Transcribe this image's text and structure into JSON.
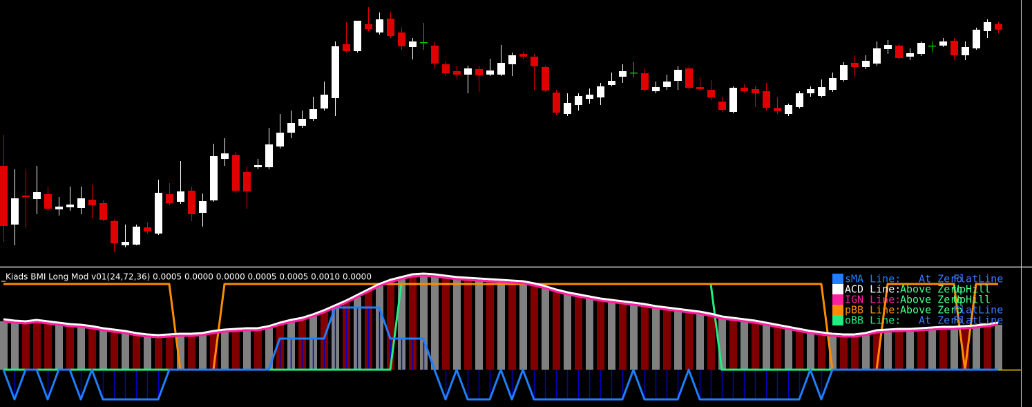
{
  "chart_data": [
    {
      "type": "candlestick",
      "up_color": "#ffffff",
      "down_color": "#e00000",
      "doji_color": "#00c000",
      "ylim": [
        5,
        390
      ],
      "open": [
        150,
        65,
        107,
        102,
        109,
        87,
        90,
        89,
        101,
        96,
        70,
        35,
        36,
        61,
        52,
        109,
        98,
        114,
        82,
        100,
        160,
        166,
        141,
        148,
        148,
        178,
        198,
        208,
        218,
        233,
        248,
        326,
        316,
        355,
        343,
        363,
        343,
        322,
        329,
        324,
        297,
        287,
        282,
        290,
        282,
        282,
        297,
        312,
        308,
        293,
        256,
        225,
        238,
        247,
        249,
        267,
        279,
        285,
        284,
        258,
        264,
        273,
        291,
        264,
        260,
        243,
        228,
        263,
        261,
        258,
        234,
        225,
        235,
        255,
        251,
        260,
        274,
        299,
        293,
        298,
        319,
        324,
        308,
        312,
        324,
        324,
        331,
        310,
        320,
        345,
        355
      ],
      "high": [
        195,
        145,
        145,
        150,
        120,
        105,
        120,
        120,
        122,
        100,
        72,
        65,
        65,
        68,
        130,
        125,
        157,
        120,
        110,
        182,
        190,
        170,
        150,
        160,
        205,
        225,
        230,
        230,
        250,
        272,
        330,
        358,
        360,
        380,
        372,
        373,
        350,
        335,
        357,
        330,
        302,
        295,
        295,
        295,
        305,
        325,
        314,
        315,
        312,
        295,
        260,
        255,
        255,
        262,
        270,
        285,
        297,
        300,
        290,
        272,
        282,
        294,
        295,
        278,
        274,
        250,
        265,
        268,
        265,
        270,
        250,
        240,
        258,
        265,
        275,
        285,
        300,
        310,
        310,
        330,
        332,
        327,
        320,
        330,
        330,
        335,
        335,
        330,
        350,
        362,
        358
      ],
      "low": [
        40,
        35,
        60,
        80,
        85,
        78,
        85,
        80,
        75,
        70,
        25,
        32,
        35,
        52,
        50,
        93,
        95,
        70,
        62,
        98,
        150,
        110,
        88,
        145,
        145,
        175,
        190,
        205,
        215,
        230,
        222,
        314,
        314,
        345,
        340,
        335,
        318,
        304,
        318,
        290,
        280,
        275,
        255,
        257,
        280,
        280,
        280,
        305,
        260,
        257,
        224,
        222,
        230,
        240,
        238,
        265,
        270,
        278,
        258,
        255,
        260,
        260,
        260,
        258,
        245,
        228,
        226,
        256,
        235,
        230,
        225,
        222,
        233,
        250,
        249,
        257,
        272,
        278,
        290,
        295,
        312,
        304,
        303,
        309,
        314,
        322,
        303,
        303,
        318,
        335,
        342
      ],
      "close": [
        63,
        103,
        105,
        112,
        88,
        91,
        94,
        103,
        93,
        72,
        38,
        40,
        62,
        55,
        111,
        96,
        113,
        80,
        99,
        164,
        168,
        114,
        113,
        151,
        181,
        198,
        212,
        218,
        232,
        253,
        323,
        316,
        360,
        348,
        362,
        338,
        323,
        330,
        329,
        298,
        284,
        282,
        291,
        281,
        288,
        299,
        310,
        308,
        294,
        259,
        227,
        241,
        251,
        253,
        265,
        273,
        287,
        285,
        260,
        264,
        272,
        289,
        263,
        261,
        249,
        231,
        263,
        258,
        255,
        234,
        229,
        238,
        255,
        261,
        264,
        277,
        296,
        293,
        302,
        320,
        325,
        306,
        313,
        328,
        324,
        330,
        310,
        322,
        347,
        358,
        347
      ]
    },
    {
      "type": "indicator",
      "title": "_Kiads BMI Long Mod v01(24,72,36) 0.0005 0.0000 0.0000 0.0005 0.0005 0.0010 0.0000",
      "ylim": [
        -54,
        146
      ],
      "histogram_colors": [
        "#808080",
        "#800000"
      ],
      "series": [
        {
          "name": "sMA Line:",
          "color": "#1e7fff",
          "fill_color": "#0000c8",
          "states": [
            "At Zero",
            "FlatLine"
          ],
          "state_colors": [
            "#3c78ff",
            "#3c78ff"
          ],
          "values": [
            0,
            -43,
            0,
            0,
            -43,
            0,
            0,
            -43,
            0,
            -43,
            -43,
            -43,
            -43,
            -43,
            -43,
            0,
            0,
            0,
            0,
            0,
            0,
            0,
            0,
            0,
            0,
            45,
            45,
            45,
            45,
            45,
            90,
            90,
            90,
            90,
            90,
            45,
            45,
            45,
            45,
            0,
            -43,
            0,
            -43,
            -43,
            -43,
            0,
            -43,
            0,
            -43,
            -43,
            -43,
            -43,
            -43,
            -43,
            -43,
            -43,
            -43,
            0,
            -43,
            -43,
            -43,
            -43,
            0,
            -43,
            -43,
            -43,
            -43,
            -43,
            -43,
            -43,
            -43,
            -43,
            -43,
            0,
            -43,
            0,
            0,
            0,
            0,
            0,
            0,
            0,
            0,
            0,
            0,
            0,
            0,
            0,
            0,
            0,
            0
          ]
        },
        {
          "name": "ACD Line:",
          "color": "#ffffff",
          "states": [
            "Above Zero",
            "UpHill"
          ],
          "state_colors": [
            "#44ff88",
            "#44ff88"
          ],
          "values": [
            73,
            71,
            70,
            72,
            70,
            68,
            66,
            65,
            63,
            60,
            58,
            56,
            53,
            51,
            50,
            51,
            52,
            52,
            53,
            56,
            58,
            59,
            60,
            60,
            63,
            68,
            72,
            75,
            80,
            86,
            93,
            100,
            108,
            116,
            124,
            130,
            134,
            138,
            139,
            138,
            136,
            134,
            133,
            132,
            131,
            130,
            129,
            128,
            125,
            121,
            116,
            112,
            109,
            106,
            103,
            101,
            99,
            97,
            95,
            92,
            90,
            88,
            86,
            84,
            81,
            77,
            75,
            73,
            71,
            68,
            65,
            62,
            59,
            56,
            54,
            52,
            51,
            51,
            53,
            57,
            58,
            59,
            59,
            60,
            61,
            62,
            62,
            63,
            64,
            66,
            68
          ]
        },
        {
          "name": "IGN Line:",
          "color": "#ff1fa0",
          "histogram": true,
          "states": [
            "Above Zero",
            "UpHill"
          ],
          "state_colors": [
            "#44ff88",
            "#44ff88"
          ],
          "values": [
            70,
            68,
            67,
            69,
            67,
            65,
            63,
            62,
            60,
            57,
            55,
            53,
            50,
            48,
            47,
            48,
            49,
            49,
            50,
            53,
            55,
            56,
            57,
            57,
            60,
            65,
            69,
            72,
            77,
            83,
            90,
            97,
            105,
            113,
            121,
            127,
            131,
            135,
            136,
            135,
            133,
            131,
            130,
            129,
            128,
            127,
            126,
            125,
            122,
            118,
            113,
            109,
            106,
            103,
            100,
            98,
            96,
            94,
            92,
            89,
            87,
            85,
            83,
            81,
            78,
            74,
            72,
            70,
            68,
            65,
            62,
            59,
            56,
            53,
            51,
            49,
            48,
            48,
            50,
            54,
            55,
            56,
            56,
            57,
            58,
            59,
            59,
            60,
            61,
            63,
            65
          ]
        },
        {
          "name": "pBB Line:",
          "color": "#ff8c00",
          "states": [
            "Above Zero",
            "FlatLine"
          ],
          "state_colors": [
            "#44ff88",
            "#3c78ff"
          ],
          "values": [
            124,
            124,
            124,
            124,
            124,
            124,
            124,
            124,
            124,
            124,
            124,
            124,
            124,
            124,
            124,
            124,
            0,
            0,
            0,
            0,
            124,
            124,
            124,
            124,
            124,
            124,
            124,
            124,
            124,
            124,
            124,
            124,
            124,
            124,
            124,
            124,
            124,
            124,
            124,
            124,
            124,
            124,
            124,
            124,
            124,
            124,
            124,
            124,
            124,
            124,
            124,
            124,
            124,
            124,
            124,
            124,
            124,
            124,
            124,
            124,
            124,
            124,
            124,
            124,
            124,
            124,
            124,
            124,
            124,
            124,
            124,
            124,
            124,
            124,
            124,
            0,
            0,
            0,
            0,
            0,
            124,
            124,
            124,
            124,
            124,
            124,
            124,
            0,
            124,
            124,
            124
          ]
        },
        {
          "name": "oBB Line:",
          "color": "#20ee80",
          "states": [
            "At Zero",
            "FlatLine"
          ],
          "state_colors": [
            "#3c78ff",
            "#3c78ff"
          ],
          "values": [
            0,
            0,
            0,
            0,
            0,
            0,
            0,
            0,
            0,
            0,
            0,
            0,
            0,
            0,
            0,
            0,
            0,
            0,
            0,
            0,
            0,
            0,
            0,
            0,
            0,
            0,
            0,
            0,
            0,
            0,
            0,
            0,
            0,
            0,
            0,
            0,
            124,
            124,
            124,
            124,
            124,
            124,
            124,
            124,
            124,
            124,
            124,
            124,
            124,
            124,
            124,
            124,
            124,
            124,
            124,
            124,
            124,
            124,
            124,
            124,
            124,
            124,
            124,
            124,
            124,
            0,
            0,
            0,
            0,
            0,
            0,
            0,
            0,
            0,
            0,
            0,
            0,
            0,
            0,
            0,
            0,
            0,
            0,
            0,
            0,
            0,
            0,
            0,
            0,
            0,
            0
          ]
        }
      ]
    }
  ]
}
